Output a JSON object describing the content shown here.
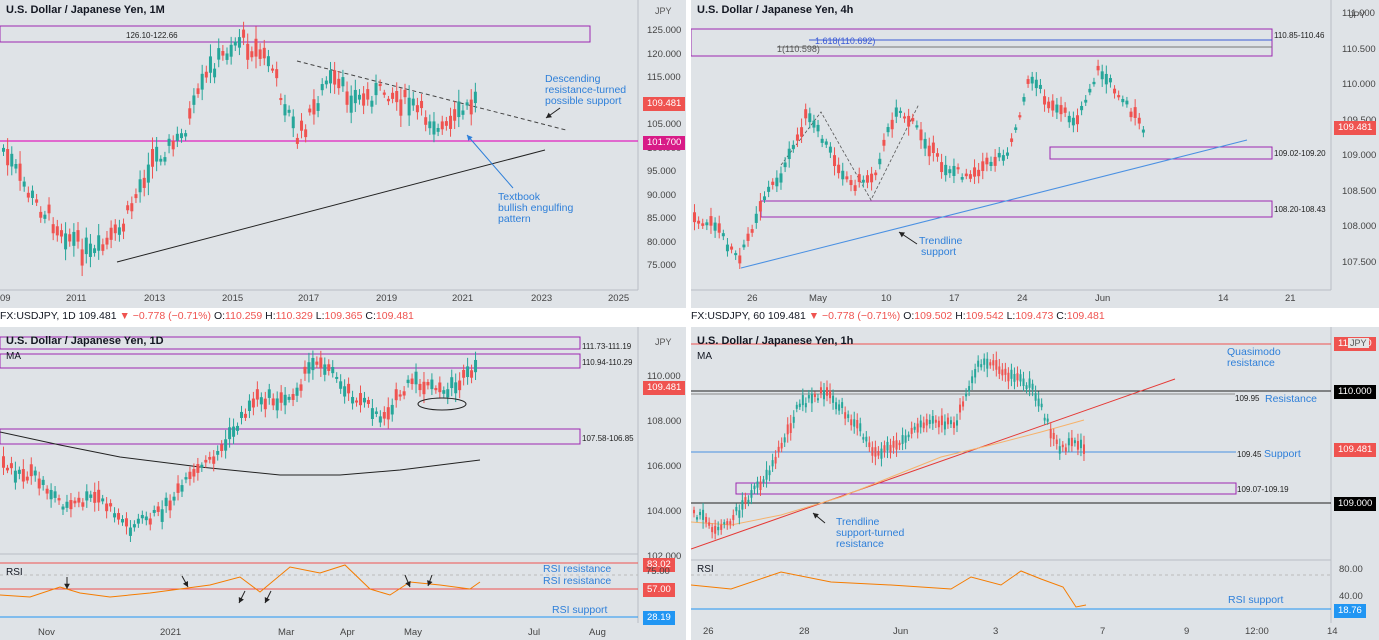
{
  "panels": {
    "monthly": {
      "title": "U.S. Dollar / Japanese Yen, 1M",
      "unit": "JPY",
      "box_label": "126.10-122.66",
      "price_ticks": [
        "125.000",
        "120.000",
        "115.000",
        "110.000",
        "105.000",
        "100.000",
        "95.000",
        "90.000",
        "85.000",
        "80.000",
        "75.000"
      ],
      "x_ticks": [
        "09",
        "2011",
        "2013",
        "2015",
        "2017",
        "2019",
        "2021",
        "2023",
        "2025"
      ],
      "price_tag": "109.481",
      "level_tag": "101.700",
      "note_descending": [
        "Descending",
        "resistance-turned",
        "possible support"
      ],
      "note_engulfing": [
        "Textbook",
        "bullish engulfing",
        "pattern"
      ],
      "top_tick": "1"
    },
    "h4": {
      "title": "U.S. Dollar / Japanese Yen, 4h",
      "unit": "JPY",
      "box_top_label": "110.85-110.46",
      "fib1": "1.618(110.692)",
      "fib2": "1(110.598)",
      "box_mid_label": "109.02-109.20",
      "box_low_label": "108.20-108.43",
      "price_ticks": [
        "111.000",
        "110.500",
        "110.000",
        "109.500",
        "109.000",
        "108.500",
        "108.000",
        "107.500"
      ],
      "x_ticks": [
        "26",
        "May",
        "10",
        "17",
        "24",
        "Jun",
        "14",
        "21"
      ],
      "price_tag": "109.481",
      "note_trendline": [
        "Trendline",
        "support"
      ]
    },
    "daily": {
      "infobar": {
        "symbol": "FX:USDJPY, 1D",
        "price": "109.481",
        "change": "▼ −0.778 (−0.71%)",
        "o": "O:",
        "o_val": "110.259",
        "h": "H:",
        "h_val": "110.329",
        "l": "L:",
        "l_val": "109.365",
        "c": "C:",
        "c_val": "109.481"
      },
      "title": "U.S. Dollar / Japanese Yen, 1D",
      "unit": "JPY",
      "ma_label": "MA",
      "box1_label": "111.73-111.19",
      "box2_label": "110.94-110.29",
      "box3_label": "107.58-106.85",
      "price_ticks": [
        "110.000",
        "108.000",
        "106.000",
        "104.000",
        "102.000"
      ],
      "price_tag": "109.481",
      "rsi_label": "RSI",
      "rsi_tags": [
        "83.02",
        "57.00",
        "28.19"
      ],
      "rsi_tick": "75.00",
      "rsi_notes": [
        "RSI resistance",
        "RSI resistance",
        "RSI support"
      ],
      "x_ticks": [
        "Nov",
        "2021",
        "Mar",
        "Apr",
        "May",
        "Jul",
        "Aug"
      ]
    },
    "hourly": {
      "infobar": {
        "symbol": "FX:USDJPY, 60",
        "price": "109.481",
        "change": "▼ −0.778 (−0.71%)",
        "o": "O:",
        "o_val": "109.502",
        "h": "H:",
        "h_val": "109.542",
        "l": "L:",
        "l_val": "109.473",
        "c": "C:",
        "c_val": "109.481"
      },
      "title": "U.S. Dollar / Japanese Yen, 1h",
      "unit": "JPY",
      "ma_label": "MA",
      "top_tag": "110.500",
      "qm_note": [
        "Quasimodo",
        "resistance"
      ],
      "lvl_res_label": "109.95",
      "lvl_res_note": "Resistance",
      "lvl_sup_label": "109.45",
      "lvl_sup_note": "Support",
      "box_label": "109.07-109.19",
      "tag_110": "110.000",
      "tag_109": "109.000",
      "price_tag": "109.481",
      "note_trend": [
        "Trendline",
        "support-turned",
        "resistance"
      ],
      "rsi_label": "RSI",
      "rsi_ticks": [
        "80.00",
        "40.00"
      ],
      "rsi_tag": "18.76",
      "rsi_note": "RSI support",
      "x_ticks": [
        "26",
        "28",
        "Jun",
        "3",
        "7",
        "9",
        "12:00",
        "14"
      ]
    }
  },
  "colors": {
    "up": "#26a69a",
    "down": "#ef5350",
    "magenta": "#e040fb",
    "purple": "#9c27b0",
    "blue_note": "#2e7fd9",
    "orange": "#f57c00",
    "panel_bg": "#dfe3e7"
  }
}
